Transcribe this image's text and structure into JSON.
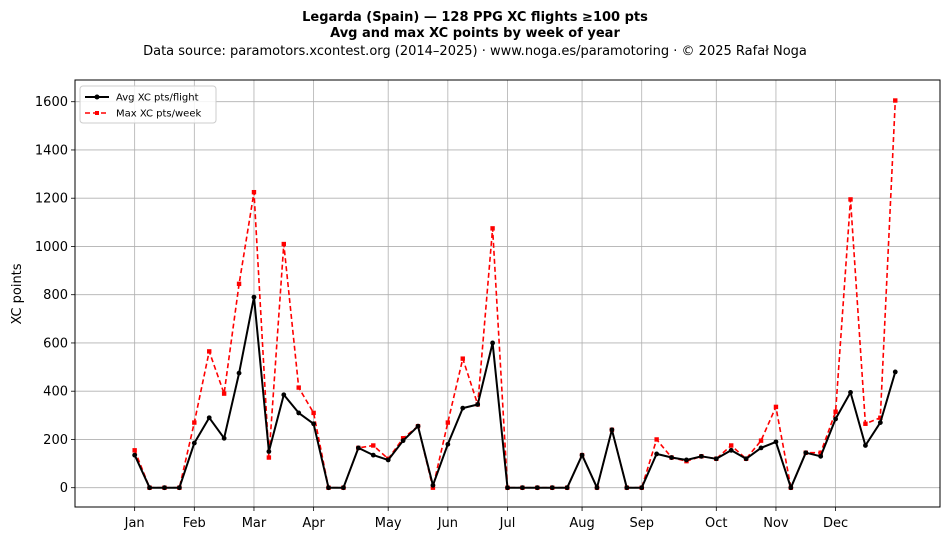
{
  "chart_data": {
    "type": "line",
    "title_line1": "Legarda (Spain)  —  128 PPG XC flights ≥100 pts",
    "title_line2": "Avg and max XC points by week of year",
    "subtitle": "Data source: paramotors.xcontest.org (2014–2025)  ·  www.noga.es/paramotoring  ·  © 2025 Rafał Noga",
    "ylabel": "XC points",
    "xlim": [
      -3,
      55
    ],
    "ylim": [
      -80,
      1690
    ],
    "yticks": [
      0,
      200,
      400,
      600,
      800,
      1000,
      1200,
      1400,
      1600
    ],
    "xticks": [
      {
        "label": "Jan",
        "x": 1
      },
      {
        "label": "Feb",
        "x": 5
      },
      {
        "label": "Mar",
        "x": 9
      },
      {
        "label": "Apr",
        "x": 13
      },
      {
        "label": "May",
        "x": 18
      },
      {
        "label": "Jun",
        "x": 22
      },
      {
        "label": "Jul",
        "x": 26
      },
      {
        "label": "Aug",
        "x": 31
      },
      {
        "label": "Sep",
        "x": 35
      },
      {
        "label": "Oct",
        "x": 40
      },
      {
        "label": "Nov",
        "x": 44
      },
      {
        "label": "Dec",
        "x": 48
      }
    ],
    "grid": true,
    "legend_position": "top-left",
    "x": [
      1,
      2,
      3,
      4,
      5,
      6,
      7,
      8,
      9,
      10,
      11,
      12,
      13,
      14,
      15,
      16,
      17,
      18,
      19,
      20,
      21,
      22,
      23,
      24,
      25,
      26,
      27,
      28,
      29,
      30,
      31,
      32,
      33,
      34,
      35,
      36,
      37,
      38,
      39,
      40,
      41,
      42,
      43,
      44,
      45,
      46,
      47,
      48,
      49,
      50,
      51,
      52,
      53
    ],
    "series": [
      {
        "name": "Avg XC pts/flight",
        "color": "#000000",
        "style": "solid",
        "marker": "circle",
        "values": [
          135,
          0,
          0,
          0,
          185,
          290,
          205,
          475,
          790,
          150,
          385,
          310,
          265,
          0,
          0,
          165,
          135,
          115,
          195,
          255,
          10,
          180,
          330,
          345,
          600,
          0,
          0,
          0,
          0,
          0,
          135,
          0,
          240,
          0,
          0,
          140,
          125,
          115,
          130,
          120,
          155,
          120,
          165,
          190,
          0,
          145,
          130,
          285,
          395,
          175,
          270,
          480,
          null
        ]
      },
      {
        "name": "Max XC pts/week",
        "color": "#ff0000",
        "style": "dashed",
        "marker": "square",
        "values": [
          155,
          0,
          0,
          0,
          270,
          565,
          390,
          845,
          1225,
          125,
          1010,
          415,
          310,
          0,
          0,
          165,
          175,
          120,
          205,
          255,
          0,
          270,
          535,
          345,
          1075,
          0,
          0,
          0,
          0,
          0,
          135,
          0,
          240,
          0,
          0,
          200,
          125,
          110,
          130,
          120,
          175,
          120,
          195,
          335,
          0,
          145,
          145,
          315,
          1195,
          265,
          290,
          1605,
          null
        ]
      }
    ]
  }
}
